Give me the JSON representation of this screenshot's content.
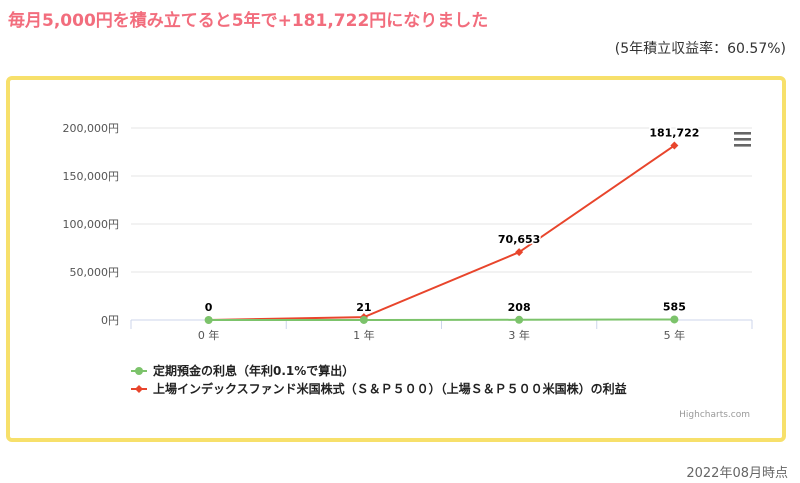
{
  "header": {
    "title": "毎月5,000円を積み立てると5年で+181,722円になりました",
    "subtitle": "(5年積立収益率：60.57%)"
  },
  "footer": {
    "date": "2022年08月時点"
  },
  "menu_icon": "hamburger-menu-icon",
  "credits": "Highcharts.com",
  "chart_data": {
    "type": "line",
    "categories": [
      "0 年",
      "1 年",
      "3 年",
      "5 年"
    ],
    "ylim": [
      0,
      200000
    ],
    "yticks": [
      "0円",
      "50,000円",
      "100,000円",
      "150,000円",
      "200,000円"
    ],
    "ytick_values": [
      0,
      50000,
      100000,
      150000,
      200000
    ],
    "grid": true,
    "legend_position": "bottom-left",
    "series": [
      {
        "name": "定期預金の利息（年利0.1%で算出）",
        "color": "#7cc36b",
        "values": [
          0,
          21,
          208,
          585
        ],
        "labels": [
          "0",
          "21",
          "208",
          "585"
        ]
      },
      {
        "name": "上場インデックスファンド米国株式（Ｓ＆Ｐ５００）（上場Ｓ＆Ｐ５００米国株）の利益",
        "color": "#e8452c",
        "values": [
          0,
          3000,
          70653,
          181722
        ],
        "labels": [
          "",
          "",
          "70,653",
          "181,722"
        ]
      }
    ]
  }
}
